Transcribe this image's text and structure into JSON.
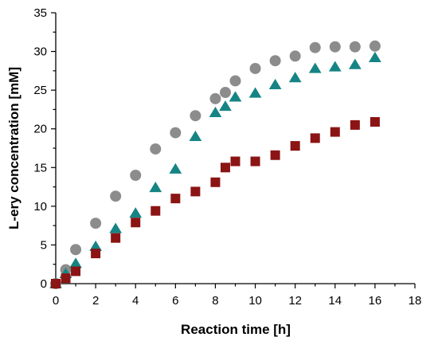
{
  "chart_data": {
    "type": "scatter",
    "title": "",
    "xlabel": "Reaction time [h]",
    "ylabel": "L-ery concentration [mM]",
    "xlim": [
      0,
      18
    ],
    "ylim": [
      0,
      35
    ],
    "xticks": [
      0,
      2,
      4,
      6,
      8,
      10,
      12,
      14,
      16,
      18
    ],
    "yticks": [
      0,
      5,
      10,
      15,
      20,
      25,
      30,
      35
    ],
    "xticks_minor_step": 1,
    "yticks_minor_step": 2.5,
    "grid": false,
    "legend": "none",
    "series": [
      {
        "marker": "circle",
        "color": "#8c8c8c",
        "x": [
          0,
          0.5,
          1,
          2,
          3,
          4,
          5,
          6,
          7,
          8,
          8.5,
          9,
          10,
          11,
          12,
          13,
          14,
          15,
          16
        ],
        "y": [
          0,
          1.8,
          4.4,
          7.8,
          11.3,
          14.0,
          17.4,
          19.5,
          21.7,
          23.9,
          24.7,
          26.2,
          27.8,
          28.8,
          29.4,
          30.5,
          30.6,
          30.6,
          30.7
        ]
      },
      {
        "marker": "triangle",
        "color": "#168484",
        "x": [
          0,
          0.5,
          1,
          2,
          3,
          4,
          5,
          6,
          7,
          8,
          8.5,
          9,
          10,
          11,
          12,
          13,
          14,
          15,
          16
        ],
        "y": [
          0,
          1.3,
          2.6,
          4.8,
          7.1,
          9.1,
          12.4,
          14.8,
          19.0,
          22.1,
          22.9,
          24.1,
          24.6,
          25.7,
          26.6,
          27.8,
          28.0,
          28.3,
          29.2
        ]
      },
      {
        "marker": "square",
        "color": "#8b1414",
        "x": [
          0,
          0.5,
          1,
          2,
          3,
          4,
          5,
          6,
          7,
          8,
          8.5,
          9,
          10,
          11,
          12,
          13,
          14,
          15,
          16
        ],
        "y": [
          0,
          0.7,
          1.6,
          3.9,
          5.9,
          7.9,
          9.4,
          11.0,
          11.9,
          13.1,
          15.0,
          15.8,
          15.8,
          16.6,
          17.8,
          18.8,
          19.6,
          20.5,
          20.9
        ]
      }
    ]
  }
}
